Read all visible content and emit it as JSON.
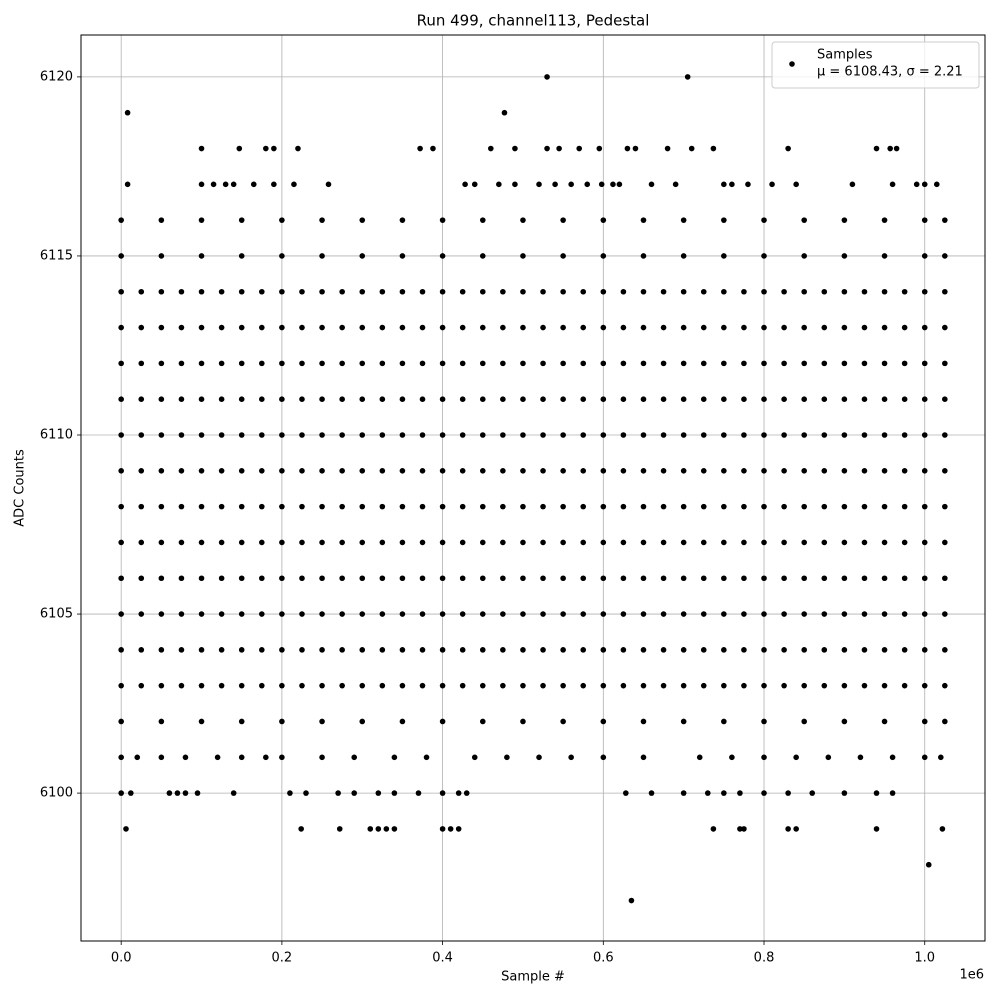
{
  "chart_data": {
    "type": "scatter",
    "title": "Run 499, channel113, Pedestal",
    "x_label": "Sample #",
    "y_label": "ADC Counts",
    "x_offset_label": "1e6",
    "legend": {
      "name": "Samples",
      "stats": "μ = 6108.43, σ = 2.21",
      "corner": "upper right"
    },
    "color": "#000000",
    "grid": true,
    "xlim": [
      -0.05,
      1.075
    ],
    "ylim": [
      6095.87,
      6121.17
    ],
    "xticks": [
      {
        "value": 0,
        "label": "0.0"
      },
      0.2,
      0.4,
      0.6,
      0.8,
      {
        "value": 1,
        "label": "1.0"
      }
    ],
    "yticks": [
      6100,
      6105,
      6110,
      6115,
      6120
    ],
    "rows": [
      {
        "y": 6120,
        "x": [
          0.53,
          0.705
        ]
      },
      {
        "y": 6119,
        "x": [
          0.008,
          0.477
        ]
      },
      {
        "y": 6118,
        "x": [
          0.1,
          0.147,
          0.18,
          0.19,
          0.22,
          0.372,
          0.388,
          0.46,
          0.49,
          0.53,
          0.545,
          0.57,
          0.595,
          0.63,
          0.64,
          0.68,
          0.71,
          0.737,
          0.83,
          0.94,
          0.957,
          0.965
        ]
      },
      {
        "y": 6117,
        "x": [
          0.008,
          0.1,
          0.115,
          0.13,
          0.14,
          0.165,
          0.19,
          0.215,
          0.258,
          0.428,
          0.44,
          0.47,
          0.49,
          0.52,
          0.54,
          0.56,
          0.58,
          0.598,
          0.612,
          0.62,
          0.66,
          0.69,
          0.75,
          0.76,
          0.78,
          0.81,
          0.84,
          0.91,
          0.96,
          0.99,
          1.0,
          1.015
        ]
      },
      {
        "y": 6116,
        "x": [
          0,
          0.05,
          0.1,
          0.15,
          0.2,
          0.25,
          0.3,
          0.35,
          0.4,
          0.45,
          0.5,
          0.55,
          0.6,
          0.65,
          0.7,
          0.75,
          0.8,
          0.85,
          0.9,
          0.95,
          1.0,
          1.025
        ]
      },
      {
        "y": 6115,
        "x": [
          0,
          0.05,
          0.1,
          0.15,
          0.2,
          0.25,
          0.3,
          0.35,
          0.4,
          0.45,
          0.5,
          0.55,
          0.6,
          0.65,
          0.7,
          0.75,
          0.8,
          0.85,
          0.9,
          0.95,
          1.0,
          1.025
        ]
      },
      {
        "y": 6114,
        "x": [
          0,
          0.025,
          0.05,
          0.075,
          0.1,
          0.125,
          0.15,
          0.175,
          0.2,
          0.225,
          0.25,
          0.275,
          0.3,
          0.325,
          0.35,
          0.375,
          0.4,
          0.425,
          0.45,
          0.475,
          0.5,
          0.525,
          0.55,
          0.575,
          0.6,
          0.625,
          0.65,
          0.675,
          0.7,
          0.725,
          0.75,
          0.775,
          0.8,
          0.825,
          0.85,
          0.875,
          0.9,
          0.925,
          0.95,
          0.975,
          1.0,
          1.025
        ]
      },
      {
        "y": 6113,
        "x": [
          0,
          0.025,
          0.05,
          0.075,
          0.1,
          0.125,
          0.15,
          0.175,
          0.2,
          0.225,
          0.25,
          0.275,
          0.3,
          0.325,
          0.35,
          0.375,
          0.4,
          0.425,
          0.45,
          0.475,
          0.5,
          0.525,
          0.55,
          0.575,
          0.6,
          0.625,
          0.65,
          0.675,
          0.7,
          0.725,
          0.75,
          0.775,
          0.8,
          0.825,
          0.85,
          0.875,
          0.9,
          0.925,
          0.95,
          0.975,
          1.0,
          1.025
        ]
      },
      {
        "y": 6112,
        "x": [
          0,
          0.025,
          0.05,
          0.075,
          0.1,
          0.125,
          0.15,
          0.175,
          0.2,
          0.225,
          0.25,
          0.275,
          0.3,
          0.325,
          0.35,
          0.375,
          0.4,
          0.425,
          0.45,
          0.475,
          0.5,
          0.525,
          0.55,
          0.575,
          0.6,
          0.625,
          0.65,
          0.675,
          0.7,
          0.725,
          0.75,
          0.775,
          0.8,
          0.825,
          0.85,
          0.875,
          0.9,
          0.925,
          0.95,
          0.975,
          1.0,
          1.025
        ]
      },
      {
        "y": 6111,
        "x": [
          0,
          0.025,
          0.05,
          0.075,
          0.1,
          0.125,
          0.15,
          0.175,
          0.2,
          0.225,
          0.25,
          0.275,
          0.3,
          0.325,
          0.35,
          0.375,
          0.4,
          0.425,
          0.45,
          0.475,
          0.5,
          0.525,
          0.55,
          0.575,
          0.6,
          0.625,
          0.65,
          0.675,
          0.7,
          0.725,
          0.75,
          0.775,
          0.8,
          0.825,
          0.85,
          0.875,
          0.9,
          0.925,
          0.95,
          0.975,
          1.0,
          1.025
        ]
      },
      {
        "y": 6110,
        "x": [
          0,
          0.025,
          0.05,
          0.075,
          0.1,
          0.125,
          0.15,
          0.175,
          0.2,
          0.225,
          0.25,
          0.275,
          0.3,
          0.325,
          0.35,
          0.375,
          0.4,
          0.425,
          0.45,
          0.475,
          0.5,
          0.525,
          0.55,
          0.575,
          0.6,
          0.625,
          0.65,
          0.675,
          0.7,
          0.725,
          0.75,
          0.775,
          0.8,
          0.825,
          0.85,
          0.875,
          0.9,
          0.925,
          0.95,
          0.975,
          1.0,
          1.025
        ]
      },
      {
        "y": 6109,
        "x": [
          0,
          0.025,
          0.05,
          0.075,
          0.1,
          0.125,
          0.15,
          0.175,
          0.2,
          0.225,
          0.25,
          0.275,
          0.3,
          0.325,
          0.35,
          0.375,
          0.4,
          0.425,
          0.45,
          0.475,
          0.5,
          0.525,
          0.55,
          0.575,
          0.6,
          0.625,
          0.65,
          0.675,
          0.7,
          0.725,
          0.75,
          0.775,
          0.8,
          0.825,
          0.85,
          0.875,
          0.9,
          0.925,
          0.95,
          0.975,
          1.0,
          1.025
        ]
      },
      {
        "y": 6108,
        "x": [
          0,
          0.025,
          0.05,
          0.075,
          0.1,
          0.125,
          0.15,
          0.175,
          0.2,
          0.225,
          0.25,
          0.275,
          0.3,
          0.325,
          0.35,
          0.375,
          0.4,
          0.425,
          0.45,
          0.475,
          0.5,
          0.525,
          0.55,
          0.575,
          0.6,
          0.625,
          0.65,
          0.675,
          0.7,
          0.725,
          0.75,
          0.775,
          0.8,
          0.825,
          0.85,
          0.875,
          0.9,
          0.925,
          0.95,
          0.975,
          1.0,
          1.025
        ]
      },
      {
        "y": 6107,
        "x": [
          0,
          0.025,
          0.05,
          0.075,
          0.1,
          0.125,
          0.15,
          0.175,
          0.2,
          0.225,
          0.25,
          0.275,
          0.3,
          0.325,
          0.35,
          0.375,
          0.4,
          0.425,
          0.45,
          0.475,
          0.5,
          0.525,
          0.55,
          0.575,
          0.6,
          0.625,
          0.65,
          0.675,
          0.7,
          0.725,
          0.75,
          0.775,
          0.8,
          0.825,
          0.85,
          0.875,
          0.9,
          0.925,
          0.95,
          0.975,
          1.0,
          1.025
        ]
      },
      {
        "y": 6106,
        "x": [
          0,
          0.025,
          0.05,
          0.075,
          0.1,
          0.125,
          0.15,
          0.175,
          0.2,
          0.225,
          0.25,
          0.275,
          0.3,
          0.325,
          0.35,
          0.375,
          0.4,
          0.425,
          0.45,
          0.475,
          0.5,
          0.525,
          0.55,
          0.575,
          0.6,
          0.625,
          0.65,
          0.675,
          0.7,
          0.725,
          0.75,
          0.775,
          0.8,
          0.825,
          0.85,
          0.875,
          0.9,
          0.925,
          0.95,
          0.975,
          1.0,
          1.025
        ]
      },
      {
        "y": 6105,
        "x": [
          0,
          0.025,
          0.05,
          0.075,
          0.1,
          0.125,
          0.15,
          0.175,
          0.2,
          0.225,
          0.25,
          0.275,
          0.3,
          0.325,
          0.35,
          0.375,
          0.4,
          0.425,
          0.45,
          0.475,
          0.5,
          0.525,
          0.55,
          0.575,
          0.6,
          0.625,
          0.65,
          0.675,
          0.7,
          0.725,
          0.75,
          0.775,
          0.8,
          0.825,
          0.85,
          0.875,
          0.9,
          0.925,
          0.95,
          0.975,
          1.0,
          1.025
        ]
      },
      {
        "y": 6104,
        "x": [
          0,
          0.025,
          0.05,
          0.075,
          0.1,
          0.125,
          0.15,
          0.175,
          0.2,
          0.225,
          0.25,
          0.275,
          0.3,
          0.325,
          0.35,
          0.375,
          0.4,
          0.425,
          0.45,
          0.475,
          0.5,
          0.525,
          0.55,
          0.575,
          0.6,
          0.625,
          0.65,
          0.675,
          0.7,
          0.725,
          0.75,
          0.775,
          0.8,
          0.825,
          0.85,
          0.875,
          0.9,
          0.925,
          0.95,
          0.975,
          1.0,
          1.025
        ]
      },
      {
        "y": 6103,
        "x": [
          0,
          0.025,
          0.05,
          0.075,
          0.1,
          0.125,
          0.15,
          0.175,
          0.2,
          0.225,
          0.25,
          0.275,
          0.3,
          0.325,
          0.35,
          0.375,
          0.4,
          0.425,
          0.45,
          0.475,
          0.5,
          0.525,
          0.55,
          0.575,
          0.6,
          0.625,
          0.65,
          0.675,
          0.7,
          0.725,
          0.75,
          0.775,
          0.8,
          0.825,
          0.85,
          0.875,
          0.9,
          0.925,
          0.95,
          0.975,
          1.0,
          1.025
        ]
      },
      {
        "y": 6102,
        "x": [
          0,
          0.05,
          0.1,
          0.15,
          0.2,
          0.25,
          0.3,
          0.35,
          0.4,
          0.45,
          0.5,
          0.55,
          0.6,
          0.65,
          0.7,
          0.75,
          0.8,
          0.85,
          0.9,
          0.95,
          1.0,
          1.025
        ]
      },
      {
        "y": 6101,
        "x": [
          0,
          0.02,
          0.05,
          0.08,
          0.12,
          0.15,
          0.18,
          0.2,
          0.25,
          0.29,
          0.34,
          0.38,
          0.44,
          0.48,
          0.52,
          0.56,
          0.6,
          0.65,
          0.72,
          0.76,
          0.8,
          0.84,
          0.88,
          0.92,
          0.96,
          1.0,
          1.02
        ]
      },
      {
        "y": 6100,
        "x": [
          0,
          0.012,
          0.06,
          0.07,
          0.08,
          0.095,
          0.14,
          0.21,
          0.23,
          0.27,
          0.29,
          0.32,
          0.34,
          0.37,
          0.4,
          0.42,
          0.43,
          0.628,
          0.66,
          0.7,
          0.73,
          0.75,
          0.77,
          0.8,
          0.83,
          0.86,
          0.9,
          0.94,
          0.96
        ]
      },
      {
        "y": 6099,
        "x": [
          0.006,
          0.224,
          0.272,
          0.31,
          0.32,
          0.33,
          0.34,
          0.4,
          0.41,
          0.42,
          0.737,
          0.77,
          0.775,
          0.83,
          0.84,
          0.94,
          1.022
        ]
      },
      {
        "y": 6098,
        "x": [
          1.005
        ]
      },
      {
        "y": 6097,
        "x": [
          0.635
        ]
      }
    ]
  }
}
